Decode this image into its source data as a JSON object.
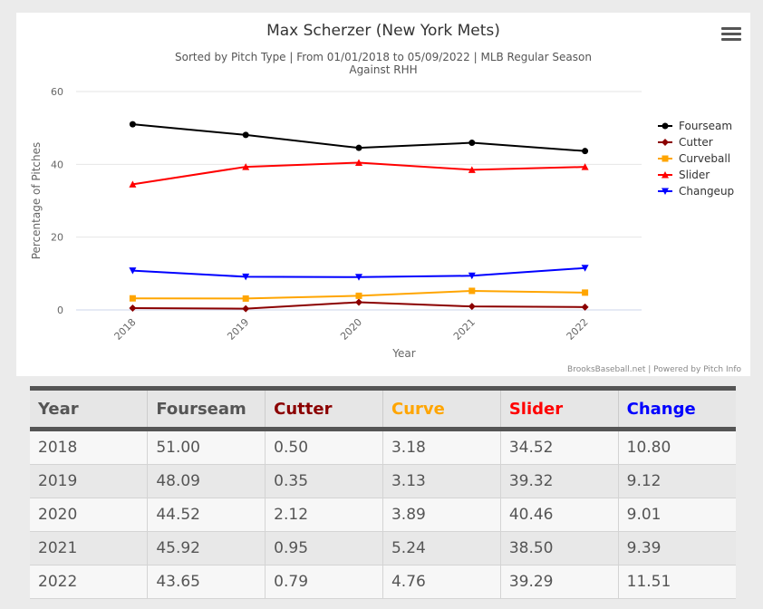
{
  "chart_data": {
    "type": "line",
    "title": "Max Scherzer (New York Mets)",
    "subtitle_lines": [
      "Sorted by Pitch Type | From 01/01/2018 to 05/09/2022 | MLB Regular Season",
      "Against RHH"
    ],
    "xlabel": "Year",
    "ylabel": "Percentage of Pitches",
    "categories": [
      "2018",
      "2019",
      "2020",
      "2021",
      "2022"
    ],
    "yticks": [
      "0",
      "20",
      "40",
      "60"
    ],
    "ylim": [
      0,
      60
    ],
    "grid": true,
    "legend_position": "right",
    "credits": "BrooksBaseball.net | Powered by Pitch Info",
    "series": [
      {
        "name": "Fourseam",
        "color": "#000000",
        "marker": "circle",
        "values": [
          51.0,
          48.09,
          44.52,
          45.92,
          43.65
        ]
      },
      {
        "name": "Cutter",
        "color": "#8b0000",
        "marker": "diamond",
        "values": [
          0.5,
          0.35,
          2.12,
          0.95,
          0.79
        ]
      },
      {
        "name": "Curveball",
        "color": "#ffa500",
        "marker": "square",
        "values": [
          3.18,
          3.13,
          3.89,
          5.24,
          4.76
        ]
      },
      {
        "name": "Slider",
        "color": "#ff0000",
        "marker": "triangle",
        "values": [
          34.52,
          39.32,
          40.46,
          38.5,
          39.29
        ]
      },
      {
        "name": "Changeup",
        "color": "#0000ff",
        "marker": "triangle-down",
        "values": [
          10.8,
          9.12,
          9.01,
          9.39,
          11.51
        ]
      }
    ]
  },
  "table": {
    "headers": [
      {
        "label": "Year",
        "color": "#555555"
      },
      {
        "label": "Fourseam",
        "color": "#555555"
      },
      {
        "label": "Cutter",
        "color": "#8b0000"
      },
      {
        "label": "Curve",
        "color": "#ffa500"
      },
      {
        "label": "Slider",
        "color": "#ff0000"
      },
      {
        "label": "Change",
        "color": "#0000ff"
      }
    ],
    "rows": [
      [
        "2018",
        "51.00",
        "0.50",
        "3.18",
        "34.52",
        "10.80"
      ],
      [
        "2019",
        "48.09",
        "0.35",
        "3.13",
        "39.32",
        "9.12"
      ],
      [
        "2020",
        "44.52",
        "2.12",
        "3.89",
        "40.46",
        "9.01"
      ],
      [
        "2021",
        "45.92",
        "0.95",
        "5.24",
        "38.50",
        "9.39"
      ],
      [
        "2022",
        "43.65",
        "0.79",
        "4.76",
        "39.29",
        "11.51"
      ]
    ]
  }
}
